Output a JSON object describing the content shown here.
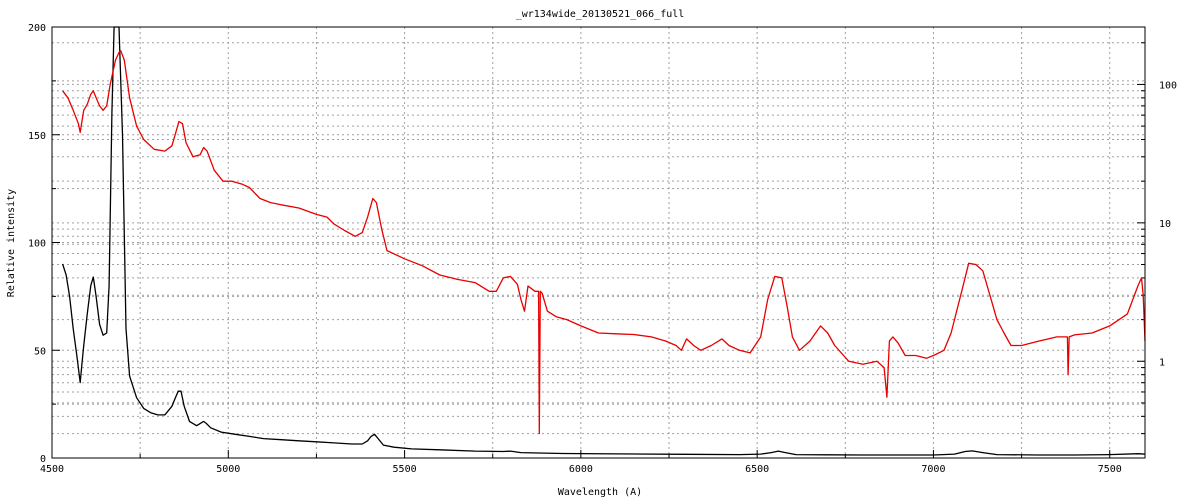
{
  "chart_data": {
    "type": "line",
    "title": "_wr134wide_20130521_066_full",
    "xlabel": "Wavelength (A)",
    "ylabel": "Relative intensity",
    "xlim": [
      4500,
      7600
    ],
    "ylim": [
      0,
      200
    ],
    "y2lim": [
      0.2,
      260
    ],
    "y2scale": "log",
    "grid": true,
    "x_ticks": [
      "4500",
      "5000",
      "5500",
      "6000",
      "6500",
      "7000",
      "7500"
    ],
    "y_ticks": [
      "0",
      "50",
      "100",
      "150",
      "200"
    ],
    "y2_ticks": [
      "1",
      "10",
      "100"
    ],
    "colors": {
      "linear": "#000000",
      "log": "#e80000",
      "grid": "#a0a0a0"
    },
    "series": [
      {
        "axis": "left",
        "color": "#000000",
        "points": [
          [
            4530,
            90
          ],
          [
            4540,
            85
          ],
          [
            4550,
            75
          ],
          [
            4560,
            60
          ],
          [
            4570,
            48
          ],
          [
            4580,
            35
          ],
          [
            4585,
            44
          ],
          [
            4590,
            52
          ],
          [
            4600,
            67
          ],
          [
            4610,
            80
          ],
          [
            4617,
            84
          ],
          [
            4625,
            75
          ],
          [
            4635,
            62
          ],
          [
            4645,
            57
          ],
          [
            4655,
            58
          ],
          [
            4662,
            80
          ],
          [
            4670,
            160
          ],
          [
            4676,
            260
          ],
          [
            4690,
            270
          ],
          [
            4700,
            150
          ],
          [
            4710,
            60
          ],
          [
            4720,
            38
          ],
          [
            4740,
            28
          ],
          [
            4760,
            23
          ],
          [
            4780,
            21
          ],
          [
            4800,
            20
          ],
          [
            4820,
            20
          ],
          [
            4840,
            24
          ],
          [
            4850,
            28
          ],
          [
            4858,
            31
          ],
          [
            4866,
            31
          ],
          [
            4875,
            24
          ],
          [
            4890,
            17
          ],
          [
            4910,
            15
          ],
          [
            4930,
            17
          ],
          [
            4938,
            16
          ],
          [
            4950,
            14
          ],
          [
            4980,
            12
          ],
          [
            5020,
            11
          ],
          [
            5060,
            10
          ],
          [
            5100,
            9
          ],
          [
            5150,
            8.5
          ],
          [
            5200,
            8
          ],
          [
            5250,
            7.5
          ],
          [
            5300,
            7
          ],
          [
            5350,
            6.5
          ],
          [
            5380,
            6.5
          ],
          [
            5395,
            8
          ],
          [
            5405,
            10
          ],
          [
            5415,
            11
          ],
          [
            5425,
            9
          ],
          [
            5440,
            6
          ],
          [
            5470,
            5
          ],
          [
            5520,
            4.2
          ],
          [
            5600,
            3.8
          ],
          [
            5700,
            3.2
          ],
          [
            5780,
            3
          ],
          [
            5800,
            3.2
          ],
          [
            5830,
            2.5
          ],
          [
            5880,
            2.3
          ],
          [
            5950,
            2.1
          ],
          [
            6100,
            1.9
          ],
          [
            6300,
            1.7
          ],
          [
            6450,
            1.6
          ],
          [
            6510,
            1.8
          ],
          [
            6540,
            2.5
          ],
          [
            6560,
            3.2
          ],
          [
            6580,
            2.5
          ],
          [
            6610,
            1.6
          ],
          [
            6700,
            1.5
          ],
          [
            6800,
            1.4
          ],
          [
            6900,
            1.4
          ],
          [
            7000,
            1.4
          ],
          [
            7060,
            1.8
          ],
          [
            7090,
            3
          ],
          [
            7110,
            3.3
          ],
          [
            7140,
            2.5
          ],
          [
            7180,
            1.6
          ],
          [
            7300,
            1.4
          ],
          [
            7400,
            1.4
          ],
          [
            7500,
            1.6
          ],
          [
            7580,
            2
          ],
          [
            7600,
            1.8
          ]
        ]
      },
      {
        "axis": "right",
        "color": "#e80000",
        "points": [
          [
            4530,
            90
          ],
          [
            4545,
            80
          ],
          [
            4560,
            65
          ],
          [
            4575,
            52
          ],
          [
            4580,
            45
          ],
          [
            4590,
            65
          ],
          [
            4600,
            72
          ],
          [
            4610,
            85
          ],
          [
            4617,
            90
          ],
          [
            4625,
            80
          ],
          [
            4635,
            70
          ],
          [
            4645,
            65
          ],
          [
            4655,
            70
          ],
          [
            4665,
            100
          ],
          [
            4680,
            150
          ],
          [
            4690,
            170
          ],
          [
            4695,
            175
          ],
          [
            4705,
            150
          ],
          [
            4720,
            80
          ],
          [
            4740,
            50
          ],
          [
            4760,
            40
          ],
          [
            4790,
            34
          ],
          [
            4820,
            33
          ],
          [
            4840,
            36
          ],
          [
            4850,
            44
          ],
          [
            4860,
            54
          ],
          [
            4870,
            52
          ],
          [
            4880,
            38
          ],
          [
            4900,
            30
          ],
          [
            4920,
            31
          ],
          [
            4930,
            35
          ],
          [
            4940,
            33
          ],
          [
            4960,
            24
          ],
          [
            4985,
            20
          ],
          [
            5010,
            20
          ],
          [
            5040,
            19
          ],
          [
            5060,
            18
          ],
          [
            5090,
            15
          ],
          [
            5120,
            14
          ],
          [
            5150,
            13.5
          ],
          [
            5200,
            12.8
          ],
          [
            5250,
            11.5
          ],
          [
            5280,
            11
          ],
          [
            5300,
            9.8
          ],
          [
            5330,
            8.8
          ],
          [
            5360,
            8
          ],
          [
            5380,
            8.5
          ],
          [
            5395,
            11
          ],
          [
            5410,
            15
          ],
          [
            5420,
            14
          ],
          [
            5435,
            9
          ],
          [
            5450,
            6.3
          ],
          [
            5500,
            5.5
          ],
          [
            5550,
            4.9
          ],
          [
            5600,
            4.2
          ],
          [
            5650,
            3.9
          ],
          [
            5700,
            3.7
          ],
          [
            5740,
            3.2
          ],
          [
            5760,
            3.2
          ],
          [
            5780,
            4
          ],
          [
            5800,
            4.1
          ],
          [
            5820,
            3.6
          ],
          [
            5830,
            2.8
          ],
          [
            5840,
            2.3
          ],
          [
            5850,
            3.5
          ],
          [
            5870,
            3.2
          ],
          [
            5880,
            3.2
          ],
          [
            5882,
            0.3
          ],
          [
            5885,
            3.2
          ],
          [
            5890,
            3.1
          ],
          [
            5905,
            2.3
          ],
          [
            5930,
            2.1
          ],
          [
            5960,
            2
          ],
          [
            6000,
            1.8
          ],
          [
            6050,
            1.6
          ],
          [
            6100,
            1.58
          ],
          [
            6150,
            1.56
          ],
          [
            6200,
            1.5
          ],
          [
            6240,
            1.4
          ],
          [
            6270,
            1.3
          ],
          [
            6285,
            1.2
          ],
          [
            6300,
            1.45
          ],
          [
            6320,
            1.3
          ],
          [
            6340,
            1.2
          ],
          [
            6370,
            1.3
          ],
          [
            6400,
            1.45
          ],
          [
            6420,
            1.3
          ],
          [
            6450,
            1.2
          ],
          [
            6480,
            1.15
          ],
          [
            6510,
            1.5
          ],
          [
            6530,
            2.8
          ],
          [
            6550,
            4.1
          ],
          [
            6570,
            4
          ],
          [
            6585,
            2.5
          ],
          [
            6600,
            1.5
          ],
          [
            6620,
            1.2
          ],
          [
            6650,
            1.4
          ],
          [
            6680,
            1.8
          ],
          [
            6700,
            1.6
          ],
          [
            6720,
            1.3
          ],
          [
            6760,
            1
          ],
          [
            6800,
            0.95
          ],
          [
            6840,
            1
          ],
          [
            6860,
            0.9
          ],
          [
            6868,
            0.55
          ],
          [
            6875,
            1.4
          ],
          [
            6885,
            1.5
          ],
          [
            6900,
            1.35
          ],
          [
            6920,
            1.1
          ],
          [
            6950,
            1.1
          ],
          [
            6980,
            1.05
          ],
          [
            7000,
            1.1
          ],
          [
            7030,
            1.2
          ],
          [
            7050,
            1.6
          ],
          [
            7080,
            3.2
          ],
          [
            7100,
            5.1
          ],
          [
            7120,
            5
          ],
          [
            7140,
            4.5
          ],
          [
            7160,
            3
          ],
          [
            7180,
            2
          ],
          [
            7200,
            1.6
          ],
          [
            7220,
            1.3
          ],
          [
            7250,
            1.3
          ],
          [
            7300,
            1.4
          ],
          [
            7350,
            1.5
          ],
          [
            7380,
            1.5
          ],
          [
            7382,
            0.8
          ],
          [
            7385,
            1.5
          ],
          [
            7400,
            1.55
          ],
          [
            7450,
            1.6
          ],
          [
            7500,
            1.8
          ],
          [
            7550,
            2.2
          ],
          [
            7580,
            3.5
          ],
          [
            7590,
            4
          ],
          [
            7595,
            3
          ],
          [
            7600,
            1.4
          ]
        ]
      }
    ]
  }
}
